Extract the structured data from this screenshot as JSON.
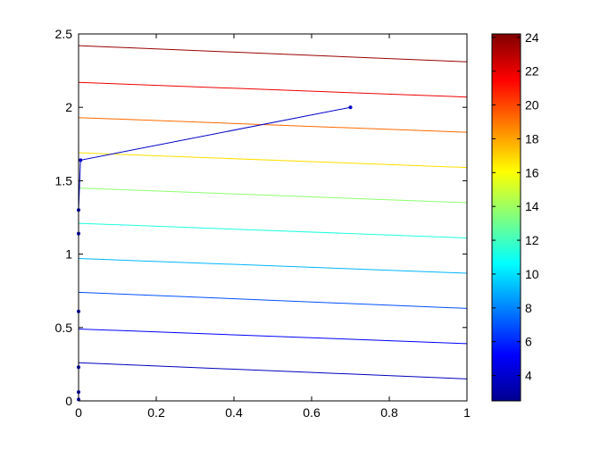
{
  "chart_data": {
    "type": "contour",
    "title": "",
    "xlabel": "",
    "ylabel": "",
    "xlim": [
      0,
      1
    ],
    "ylim": [
      0,
      2.5
    ],
    "x_ticks": [
      "0",
      "0.2",
      "0.4",
      "0.6",
      "0.8",
      "1"
    ],
    "y_ticks": [
      "0",
      "0.5",
      "1",
      "1.5",
      "2",
      "2.5"
    ],
    "grid": false,
    "contour_levels": [
      {
        "level": 2.5,
        "color": "#0000bf",
        "x": [
          0,
          1
        ],
        "y": [
          0.26,
          0.15
        ]
      },
      {
        "level": 5,
        "color": "#0000ff",
        "x": [
          0,
          1
        ],
        "y": [
          0.49,
          0.39
        ]
      },
      {
        "level": 7.5,
        "color": "#0050ff",
        "x": [
          0,
          1
        ],
        "y": [
          0.74,
          0.63
        ]
      },
      {
        "level": 10,
        "color": "#00b5ff",
        "x": [
          0,
          1
        ],
        "y": [
          0.97,
          0.87
        ]
      },
      {
        "level": 12.5,
        "color": "#20ffdf",
        "x": [
          0,
          1
        ],
        "y": [
          1.21,
          1.11
        ]
      },
      {
        "level": 15,
        "color": "#8fff70",
        "x": [
          0,
          1
        ],
        "y": [
          1.45,
          1.35
        ]
      },
      {
        "level": 17.5,
        "color": "#ffdf00",
        "x": [
          0,
          1
        ],
        "y": [
          1.69,
          1.59
        ]
      },
      {
        "level": 20,
        "color": "#ff6a00",
        "x": [
          0,
          1
        ],
        "y": [
          1.93,
          1.83
        ]
      },
      {
        "level": 22.5,
        "color": "#ee0000",
        "x": [
          0,
          1
        ],
        "y": [
          2.17,
          2.07
        ]
      },
      {
        "level": 25,
        "color": "#990000",
        "x": [
          0,
          1
        ],
        "y": [
          2.42,
          2.31
        ]
      }
    ],
    "path": {
      "color": "#0000c8",
      "x": [
        0.7,
        0.005,
        0.0,
        0.0,
        0.0,
        0.0,
        0.0,
        0.0
      ],
      "y": [
        2.0,
        1.64,
        1.3,
        1.14,
        0.61,
        0.23,
        0.06,
        0.01
      ]
    },
    "colorbar": {
      "min": 2.5,
      "max": 24.2,
      "ticks": [
        "4",
        "6",
        "8",
        "10",
        "12",
        "14",
        "16",
        "18",
        "20",
        "22",
        "24"
      ],
      "colormap": "jet"
    }
  }
}
